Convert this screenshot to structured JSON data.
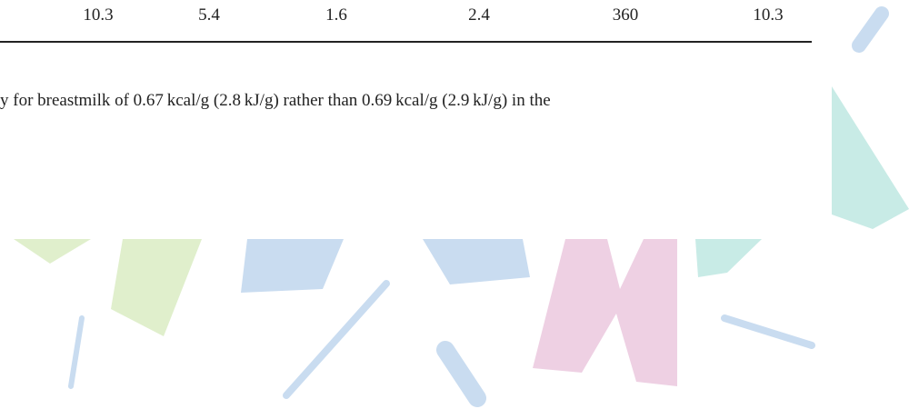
{
  "table": {
    "rows": [
      [
        "10.3",
        "5.4",
        "1.6",
        "2.4",
        "360",
        "10.3"
      ]
    ]
  },
  "footnote": "y for breastmilk of 0.67 kcal/g (2.8 kJ/g) rather than 0.69 kcal/g (2.9 kJ/g) in the"
}
